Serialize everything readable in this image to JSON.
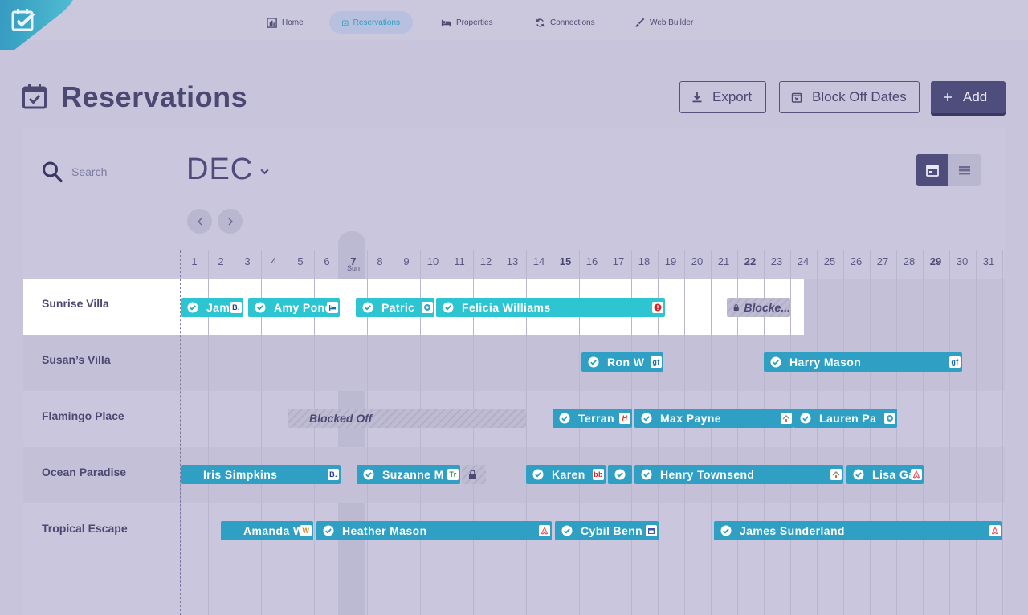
{
  "nav": {
    "items": [
      {
        "label": "Home",
        "icon": "chart-icon",
        "active": false
      },
      {
        "label": "Reservations",
        "icon": "calendar-check-icon",
        "active": true
      },
      {
        "label": "Properties",
        "icon": "bed-icon",
        "active": false
      },
      {
        "label": "Connections",
        "icon": "sync-icon",
        "active": false
      },
      {
        "label": "Web Builder",
        "icon": "brush-icon",
        "active": false
      }
    ]
  },
  "header": {
    "title": "Reservations",
    "export_label": "Export",
    "block_label": "Block Off Dates",
    "add_label": "Add"
  },
  "search": {
    "placeholder": "Search"
  },
  "calendar": {
    "month": "DEC",
    "days": [
      1,
      2,
      3,
      4,
      5,
      6,
      7,
      8,
      9,
      10,
      11,
      12,
      13,
      14,
      15,
      16,
      17,
      18,
      19,
      20,
      21,
      22,
      23,
      24,
      25,
      26,
      27,
      28,
      29,
      30,
      31
    ],
    "bold_days": [
      7,
      15,
      22,
      29
    ],
    "today": 7,
    "today_sub": "Sun",
    "properties": [
      {
        "name": "Sunrise Villa"
      },
      {
        "name": "Susan’s Villa"
      },
      {
        "name": "Flamingo Place"
      },
      {
        "name": "Ocean Paradise"
      },
      {
        "name": "Tropical Escape"
      }
    ],
    "bookings": [
      {
        "row": 0,
        "start": 0.97,
        "end": 3.33,
        "guest": "Jam",
        "source": "B.",
        "check": true,
        "light": true
      },
      {
        "row": 0,
        "start": 3.52,
        "end": 6.97,
        "guest": "Amy Pond",
        "source": "bed-icon",
        "check": true,
        "light": true
      },
      {
        "row": 0,
        "start": 7.58,
        "end": 10.55,
        "guest": "Patric",
        "source": "pin-icon",
        "check": true,
        "light": true
      },
      {
        "row": 0,
        "start": 10.62,
        "end": 19.26,
        "guest": "Felicia Williams",
        "source": "alert-icon",
        "check": true,
        "light": true
      },
      {
        "row": 1,
        "start": 16.1,
        "end": 19.2,
        "guest": "Ron W",
        "source": "gf",
        "check": true
      },
      {
        "row": 1,
        "start": 23.0,
        "end": 30.5,
        "guest": "Harry Mason",
        "source": "gf",
        "check": true
      },
      {
        "row": 2,
        "start": 15.0,
        "end": 18.0,
        "guest": "Terran",
        "source": "H",
        "check": true
      },
      {
        "row": 2,
        "start": 18.1,
        "end": 24.1,
        "guest": "Max Payne",
        "source": "home-icon",
        "check": true
      },
      {
        "row": 2,
        "start": 24.1,
        "end": 28.0,
        "guest": "Lauren Pa",
        "source": "pin-icon",
        "check": true
      },
      {
        "row": 3,
        "start": 0.97,
        "end": 7.0,
        "guest": "Iris Simpkins",
        "source": "B.",
        "check": false
      },
      {
        "row": 3,
        "start": 7.6,
        "end": 11.5,
        "guest": "Suzanne M",
        "source": "Tr",
        "check": true
      },
      {
        "row": 3,
        "start": 14.0,
        "end": 17.0,
        "guest": "Karen",
        "source": "bb",
        "check": true
      },
      {
        "row": 3,
        "start": 17.1,
        "end": 18.0,
        "guest": "",
        "source": "",
        "check": true
      },
      {
        "row": 3,
        "start": 18.1,
        "end": 26.0,
        "guest": "Henry Townsend",
        "source": "home-icon",
        "check": true
      },
      {
        "row": 3,
        "start": 26.1,
        "end": 29.0,
        "guest": "Lisa Ga",
        "source": "airbnb-icon",
        "check": true
      },
      {
        "row": 4,
        "start": 2.5,
        "end": 6.0,
        "guest": "Amanda Wo",
        "source": "W",
        "check": false
      },
      {
        "row": 4,
        "start": 6.1,
        "end": 15.0,
        "guest": "Heather Mason",
        "source": "airbnb-icon",
        "check": true
      },
      {
        "row": 4,
        "start": 15.1,
        "end": 19.0,
        "guest": "Cybil Benn",
        "source": "cal-icon",
        "check": true
      },
      {
        "row": 4,
        "start": 21.1,
        "end": 32.0,
        "guest": "James Sunderland",
        "source": "airbnb-icon",
        "check": true
      }
    ],
    "blocks": [
      {
        "row": 0,
        "start": 21.6,
        "end": 24.0,
        "label": "Blocke...",
        "lock": true
      },
      {
        "row": 2,
        "start": 5.0,
        "end": 14.0,
        "label": "Blocked Off",
        "lock": false
      },
      {
        "row": 3,
        "start": 11.6,
        "end": 12.5,
        "label": "",
        "lock": true
      }
    ]
  },
  "colors": {
    "accent": "#2fa0c4",
    "accent_light": "#2ec5d3",
    "primary": "#4f4d7c",
    "bg": "#c7c4dc"
  }
}
